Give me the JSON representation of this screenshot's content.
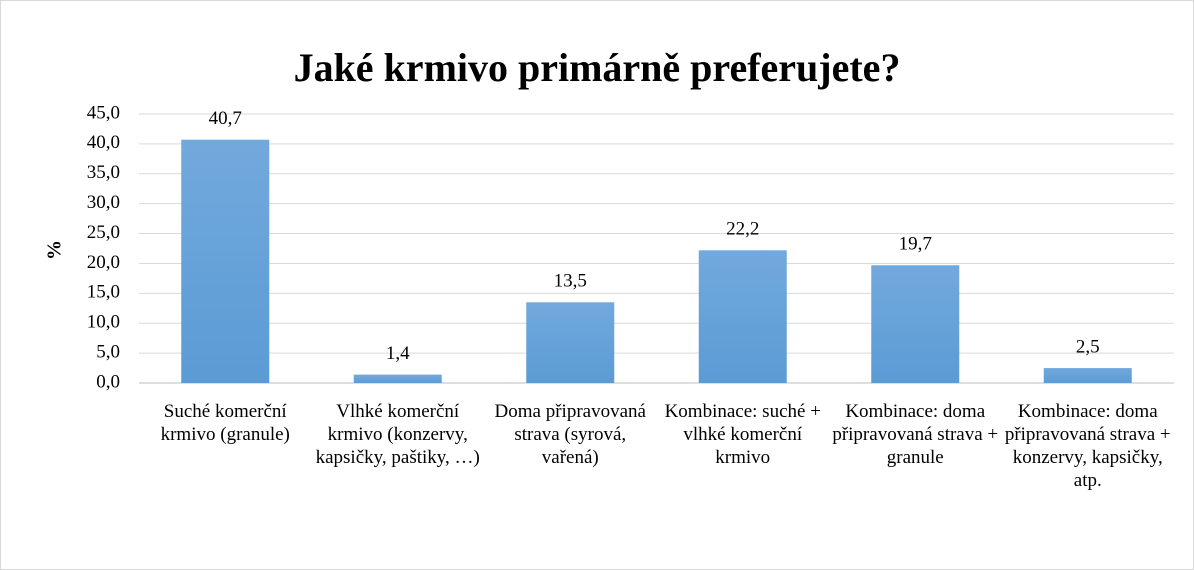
{
  "chart_data": {
    "type": "bar",
    "title": "Jaké krmivo primárně preferujete?",
    "y_label": "%",
    "categories": [
      "Suché komerční krmivo (granule)",
      "Vlhké komerční krmivo (konzervy, kapsičky, paštiky, …)",
      "Doma připravovaná strava (syrová, vařená)",
      "Kombinace: suché + vlhké komerční krmivo",
      "Kombinace: doma připravovaná strava + granule",
      "Kombinace: doma připravovaná strava + konzervy, kapsičky, atp."
    ],
    "values": [
      40.7,
      1.4,
      13.5,
      22.2,
      19.7,
      2.5
    ],
    "value_labels": [
      "40,7",
      "1,4",
      "13,5",
      "22,2",
      "19,7",
      "2,5"
    ],
    "color": "#5b9bd5",
    "ylim": [
      0,
      45
    ],
    "yticks": [
      {
        "value": 0,
        "label": "0,0"
      },
      {
        "value": 5,
        "label": "5,0"
      },
      {
        "value": 10,
        "label": "10,0"
      },
      {
        "value": 15,
        "label": "15,0"
      },
      {
        "value": 20,
        "label": "20,0"
      },
      {
        "value": 25,
        "label": "25,0"
      },
      {
        "value": 30,
        "label": "30,0"
      },
      {
        "value": 35,
        "label": "35,0"
      },
      {
        "value": 40,
        "label": "40,0"
      },
      {
        "value": 45,
        "label": "45,0"
      }
    ],
    "grid": true
  }
}
